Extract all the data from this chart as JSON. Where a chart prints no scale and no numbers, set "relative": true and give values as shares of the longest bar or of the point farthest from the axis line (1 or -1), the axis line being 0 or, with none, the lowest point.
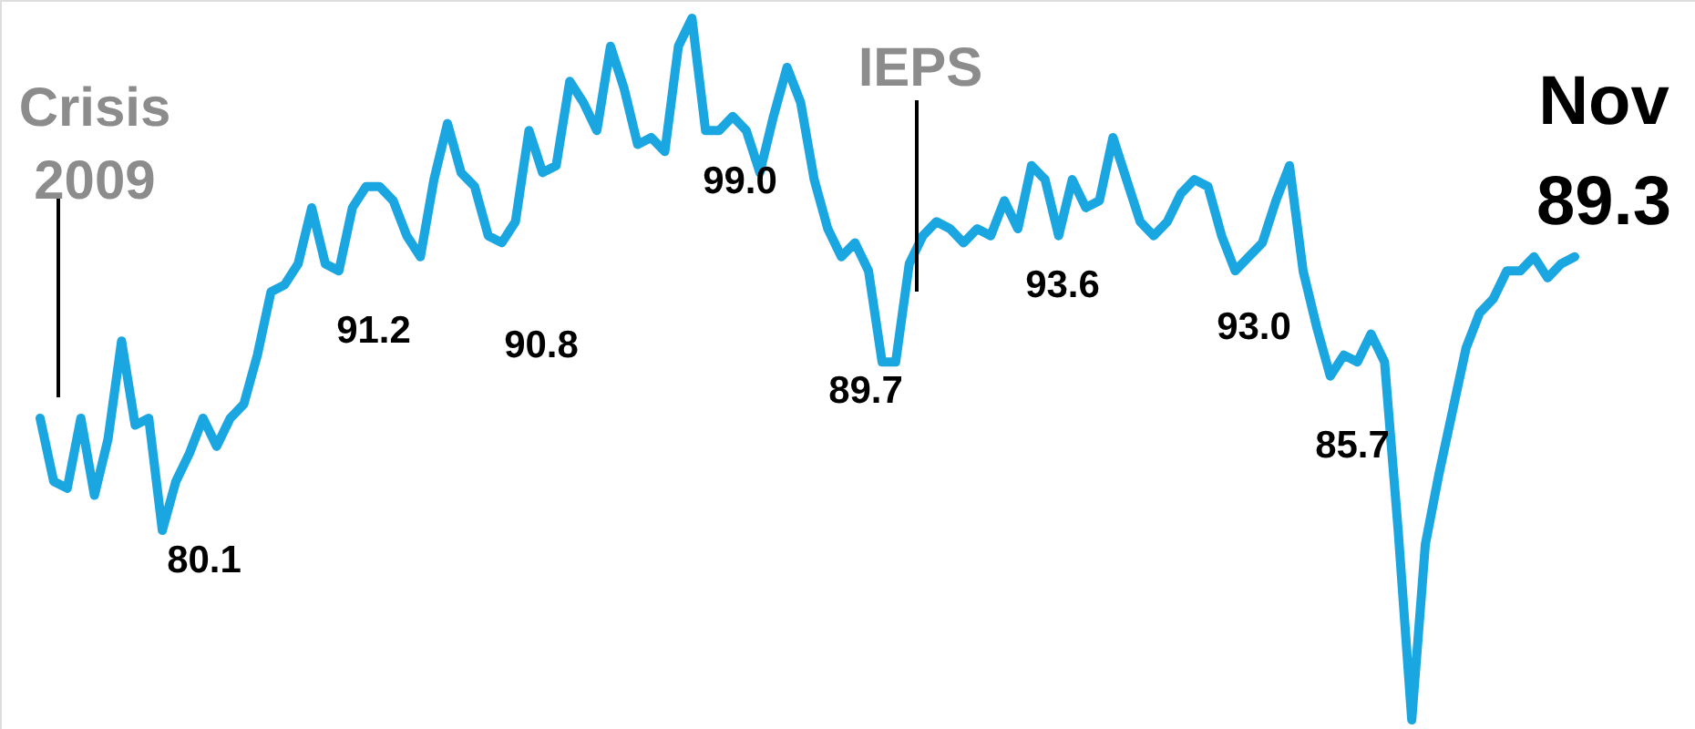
{
  "chart_data": {
    "type": "line",
    "relative": true,
    "categories": [
      null,
      null,
      null,
      null,
      null,
      null,
      null,
      null,
      null,
      null,
      null,
      null,
      null,
      null,
      null,
      null,
      null,
      null,
      null,
      null,
      null,
      null,
      null,
      null,
      null,
      null,
      null,
      null,
      null,
      null,
      null,
      null,
      null,
      null,
      null,
      null,
      null,
      null,
      null,
      null,
      null,
      null,
      null,
      null,
      null,
      null,
      null,
      null,
      null,
      null,
      null,
      null,
      null,
      null,
      null,
      null,
      null,
      null,
      null,
      null,
      null,
      null,
      null,
      null,
      null,
      null,
      null,
      null,
      null,
      null,
      null,
      null,
      null,
      null,
      null,
      null,
      null,
      null,
      null,
      null,
      null,
      null,
      null,
      null,
      null,
      null,
      null,
      null,
      null,
      null,
      null,
      null,
      null,
      null,
      null,
      null,
      null,
      null,
      null,
      null,
      null,
      null,
      null,
      null,
      null,
      null,
      null,
      null,
      null,
      null,
      null,
      null,
      null,
      null
    ],
    "series": [
      {
        "color": "#1aa7e1",
        "values": [
          0.43,
          0.34,
          0.33,
          0.43,
          0.32,
          0.4,
          0.54,
          0.42,
          0.43,
          0.27,
          0.34,
          0.38,
          0.43,
          0.39,
          0.43,
          0.45,
          0.52,
          0.61,
          0.62,
          0.65,
          0.73,
          0.65,
          0.64,
          0.73,
          0.76,
          0.76,
          0.74,
          0.69,
          0.66,
          0.77,
          0.85,
          0.78,
          0.76,
          0.69,
          0.68,
          0.71,
          0.84,
          0.78,
          0.79,
          0.91,
          0.88,
          0.84,
          0.96,
          0.9,
          0.82,
          0.83,
          0.81,
          0.96,
          1,
          0.84,
          0.84,
          0.86,
          0.84,
          0.78,
          0.86,
          0.93,
          0.88,
          0.77,
          0.7,
          0.66,
          0.68,
          0.64,
          0.51,
          0.51,
          0.65,
          0.69,
          0.71,
          0.7,
          0.68,
          0.7,
          0.69,
          0.74,
          0.7,
          0.79,
          0.77,
          0.69,
          0.77,
          0.73,
          0.74,
          0.83,
          0.77,
          0.71,
          0.69,
          0.71,
          0.75,
          0.77,
          0.76,
          0.69,
          0.64,
          0.66,
          0.68,
          0.74,
          0.79,
          0.64,
          0.56,
          0.49,
          0.52,
          0.51,
          0.55,
          0.51,
          0.27,
          0,
          0.25,
          0.35,
          0.44,
          0.53,
          0.58,
          0.6,
          0.64,
          0.64,
          0.66,
          0.63,
          0.65,
          0.66
        ]
      }
    ],
    "annotations": [
      "Crisis 2009",
      "IEPS",
      "80.1",
      "91.2",
      "90.8",
      "99.0",
      "89.7",
      "93.6",
      "93.0",
      "85.7",
      "Nov",
      "89.3"
    ],
    "line_style": "solid",
    "marker": "none"
  }
}
